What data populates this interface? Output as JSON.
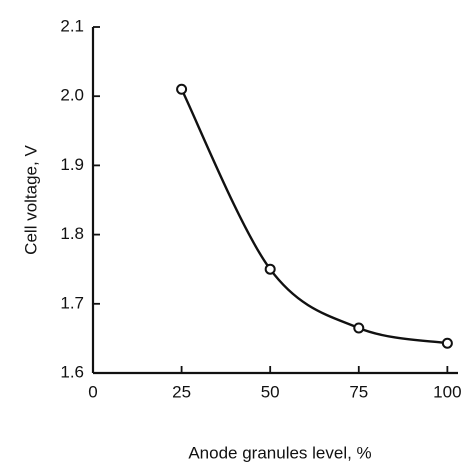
{
  "chart_data": {
    "type": "line",
    "x_label": "Anode granules level, %",
    "y_label": "Cell voltage, V",
    "x": [
      25,
      50,
      75,
      100
    ],
    "series": [
      {
        "color": "#111111",
        "values": [
          2.01,
          1.75,
          1.665,
          1.643
        ]
      }
    ],
    "smooth": true,
    "markers": "open-circle",
    "xlim": [
      0,
      103
    ],
    "xticks": [
      0,
      25,
      50,
      75,
      100
    ],
    "ylim": [
      1.6,
      2.1
    ],
    "yticks": [
      1.6,
      1.7,
      1.8,
      1.9,
      {
        "value": 2,
        "label": "2.0"
      },
      2.1
    ],
    "grid": false
  }
}
